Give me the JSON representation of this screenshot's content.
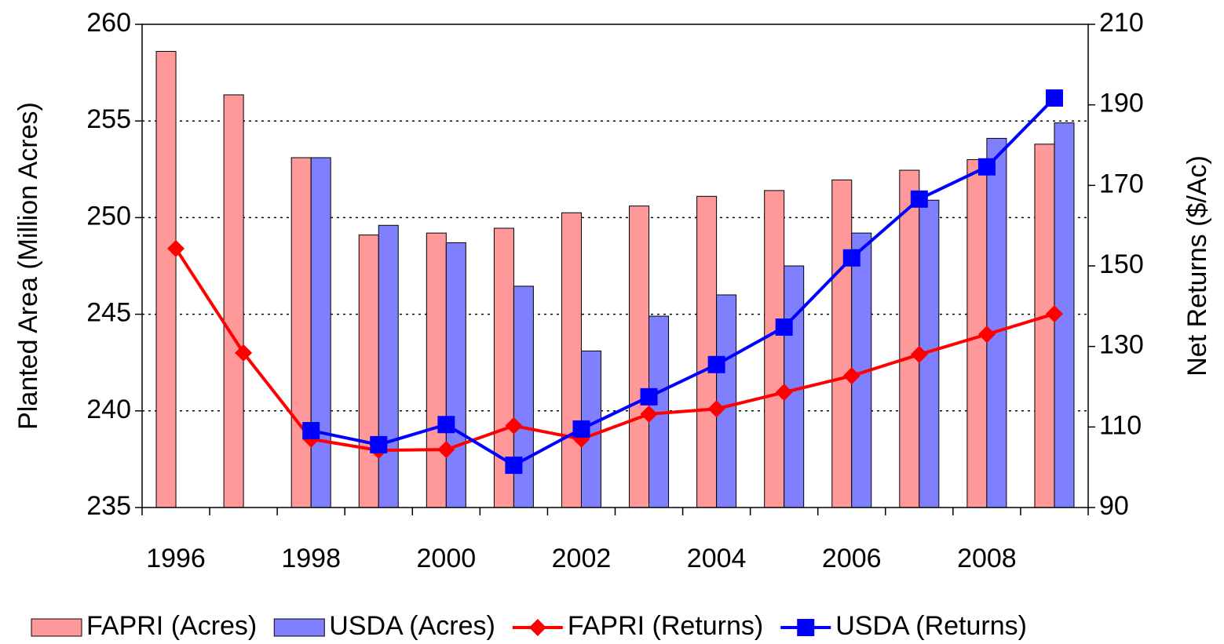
{
  "chart_data": {
    "type": "combo",
    "categories": [
      "1996",
      null,
      "1998",
      null,
      "2000",
      null,
      "2002",
      null,
      "2004",
      null,
      "2006",
      null,
      "2008",
      null
    ],
    "ylabel": "Planted Area (Million Acres)",
    "y2label": "Net Returns ($/Ac)",
    "ylim": [
      235,
      260
    ],
    "yticks": [
      235,
      240,
      245,
      250,
      255,
      260
    ],
    "y2lim": [
      90,
      210
    ],
    "y2ticks": [
      90,
      110,
      130,
      150,
      170,
      190,
      210
    ],
    "grid": true,
    "legend": "bottom",
    "series": [
      {
        "name": "FAPRI (Acres)",
        "type": "bar",
        "color": "#ff9999",
        "values": [
          258.6,
          256.35,
          253.1,
          249.1,
          249.2,
          249.45,
          250.25,
          250.6,
          251.1,
          251.4,
          251.95,
          252.45,
          253.0,
          253.8
        ]
      },
      {
        "name": "USDA (Acres)",
        "type": "bar",
        "color": "#8080ff",
        "values": [
          null,
          null,
          253.1,
          249.6,
          248.7,
          246.45,
          243.1,
          244.9,
          246.0,
          247.5,
          249.2,
          250.9,
          254.1,
          254.9
        ]
      },
      {
        "name": "FAPRI (Returns)",
        "type": "line",
        "axis": "y2",
        "color": "#ff0000",
        "marker": "diamond",
        "values": [
          154.3,
          128.4,
          107.0,
          104.2,
          104.4,
          110.3,
          107.0,
          113.2,
          114.5,
          118.6,
          122.7,
          128.0,
          133.0,
          138.1
        ]
      },
      {
        "name": "USDA (Returns)",
        "type": "line",
        "axis": "y2",
        "color": "#0000ff",
        "marker": "square",
        "values": [
          null,
          null,
          109.1,
          105.6,
          110.6,
          100.5,
          109.5,
          117.5,
          125.5,
          134.8,
          152.0,
          166.6,
          174.6,
          191.7
        ]
      }
    ]
  }
}
